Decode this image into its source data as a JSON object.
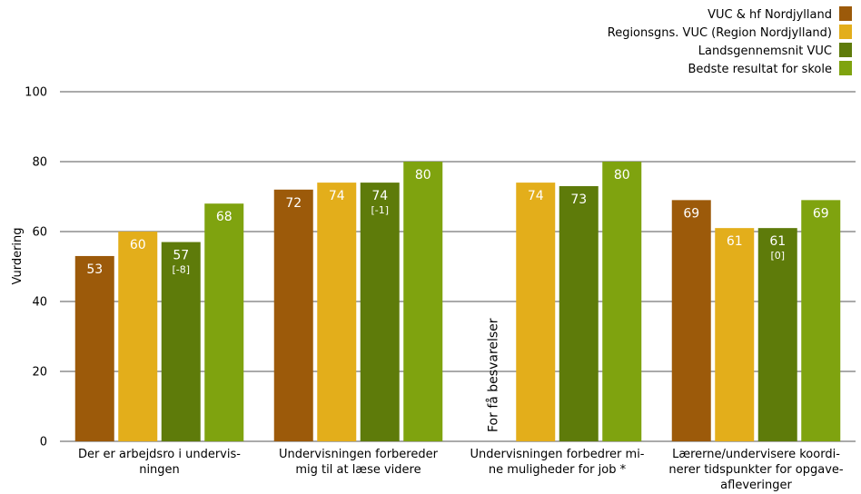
{
  "chart_data": {
    "type": "bar",
    "ylabel": "Vurdering",
    "ylim": [
      0,
      100
    ],
    "yticks": [
      0,
      20,
      40,
      60,
      80,
      100
    ],
    "grid": true,
    "legend_position": "top-right",
    "categories": [
      [
        "Der er arbejdsro i undervis-",
        "ningen"
      ],
      [
        "Undervisningen forbereder",
        "mig til at læse videre"
      ],
      [
        "Undervisningen forbedrer mi-",
        "ne muligheder for job *"
      ],
      [
        "Lærerne/undervisere koordi-",
        "nerer tidspunkter for opgave-",
        "afleveringer"
      ]
    ],
    "series": [
      {
        "name": "VUC & hf Nordjylland",
        "color": "#9c5a0a",
        "values": [
          53,
          72,
          null,
          69
        ],
        "labels": [
          "53",
          "72",
          null,
          "69"
        ],
        "notes": [
          null,
          null,
          null,
          null
        ]
      },
      {
        "name": "Regionsgns. VUC (Region Nordjylland)",
        "color": "#e3ae1b",
        "values": [
          60,
          74,
          74,
          61
        ],
        "labels": [
          "60",
          "74",
          "74",
          "61"
        ],
        "notes": [
          null,
          null,
          null,
          null
        ]
      },
      {
        "name": "Landsgennemsnit VUC",
        "color": "#5e7b0a",
        "values": [
          57,
          74,
          73,
          61
        ],
        "labels": [
          "57",
          "74",
          "73",
          "61"
        ],
        "notes": [
          "[-8]",
          "[-1]",
          null,
          "[0]"
        ]
      },
      {
        "name": "Bedste resultat for skole",
        "color": "#7fa30f",
        "values": [
          68,
          80,
          80,
          69
        ],
        "labels": [
          "68",
          "80",
          "80",
          "69"
        ],
        "notes": [
          null,
          null,
          null,
          null
        ]
      }
    ],
    "annotations": [
      {
        "category_index": 2,
        "series_index": 0,
        "text": "For få besvarelser"
      }
    ]
  }
}
